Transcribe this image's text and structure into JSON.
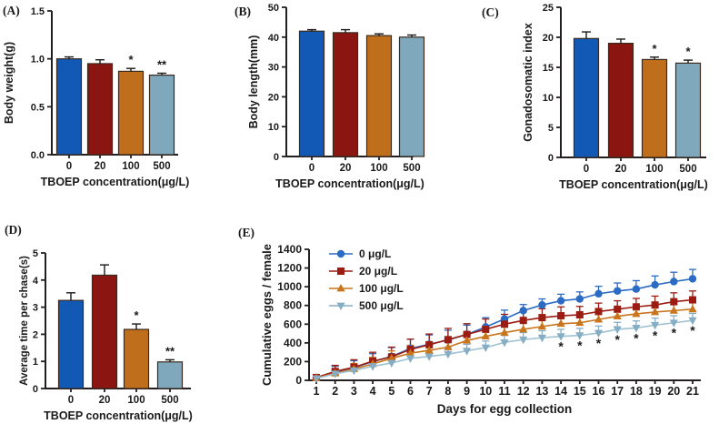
{
  "colors": {
    "bars": [
      "#1159b4",
      "#8b1510",
      "#bf6f1b",
      "#7fa8bc"
    ],
    "bar_stroke": "#3a2a20",
    "axis": "#231f20",
    "error": "#1a1a1a",
    "significance": "#1a1a1a",
    "background": "#ffffff"
  },
  "chart_data": [
    {
      "panel_label": "(A)",
      "type": "bar",
      "ylabel": "Body weight(g)",
      "xlabel": "TBOEP concentration(μg/L)",
      "categories": [
        "0",
        "20",
        "100",
        "500"
      ],
      "values": [
        1.0,
        0.95,
        0.87,
        0.83
      ],
      "errors": [
        0.02,
        0.04,
        0.03,
        0.02
      ],
      "significance": [
        "",
        "",
        "*",
        "**"
      ],
      "ylim": [
        0,
        1.5
      ],
      "ytick_step": 0.5,
      "ytick_decimals": 1
    },
    {
      "panel_label": "(B)",
      "type": "bar",
      "ylabel": "Body length(mm)",
      "xlabel": "TBOEP concentration(μg/L)",
      "categories": [
        "0",
        "20",
        "100",
        "500"
      ],
      "values": [
        42,
        41.5,
        40.5,
        40
      ],
      "errors": [
        0.5,
        1.0,
        0.6,
        0.7
      ],
      "significance": [
        "",
        "",
        "",
        ""
      ],
      "ylim": [
        0,
        50
      ],
      "ytick_step": 10,
      "ytick_decimals": 0
    },
    {
      "panel_label": "(C)",
      "type": "bar",
      "ylabel": "Gonadosomatic index",
      "xlabel": "TBOEP concentration(μg/L)",
      "categories": [
        "0",
        "20",
        "100",
        "500"
      ],
      "values": [
        19.8,
        19.0,
        16.3,
        15.7
      ],
      "errors": [
        1.1,
        0.7,
        0.4,
        0.5
      ],
      "significance": [
        "",
        "",
        "*",
        "*"
      ],
      "ylim": [
        0,
        25
      ],
      "ytick_step": 5,
      "ytick_decimals": 0
    },
    {
      "panel_label": "(D)",
      "type": "bar",
      "ylabel": "Average time per chase(s)",
      "xlabel": "TBOEP concentration(μg/L)",
      "categories": [
        "0",
        "20",
        "100",
        "500"
      ],
      "values": [
        3.25,
        4.18,
        2.18,
        0.98
      ],
      "errors": [
        0.28,
        0.38,
        0.2,
        0.08
      ],
      "significance": [
        "",
        "",
        "*",
        "**"
      ],
      "ylim": [
        0,
        5
      ],
      "ytick_step": 1,
      "ytick_decimals": 0
    },
    {
      "panel_label": "(E)",
      "type": "line",
      "ylabel": "Cumulative eggs / female",
      "xlabel": "Days for egg collection",
      "x": [
        1,
        2,
        3,
        4,
        5,
        6,
        7,
        8,
        9,
        10,
        11,
        12,
        13,
        14,
        15,
        16,
        17,
        18,
        19,
        20,
        21
      ],
      "ylim": [
        0,
        1400
      ],
      "ytick_step": 200,
      "legend_position": "top-left",
      "series": [
        {
          "name": "0 μg/L",
          "marker": "circle",
          "color": "#2b6bc4",
          "values": [
            30,
            90,
            135,
            200,
            255,
            340,
            385,
            430,
            490,
            570,
            655,
            745,
            805,
            850,
            870,
            925,
            955,
            975,
            1020,
            1055,
            1085
          ],
          "errors": [
            15,
            60,
            75,
            85,
            95,
            100,
            100,
            105,
            100,
            100,
            95,
            65,
            65,
            70,
            75,
            80,
            85,
            90,
            95,
            100,
            100
          ]
        },
        {
          "name": "20 μg/L",
          "marker": "square",
          "color": "#9b1c12",
          "values": [
            30,
            95,
            140,
            205,
            250,
            330,
            380,
            435,
            490,
            545,
            600,
            640,
            670,
            690,
            700,
            735,
            760,
            785,
            805,
            840,
            860
          ],
          "errors": [
            15,
            65,
            80,
            95,
            105,
            110,
            115,
            120,
            115,
            110,
            105,
            100,
            95,
            95,
            90,
            90,
            90,
            90,
            95,
            95,
            95
          ]
        },
        {
          "name": "100 μg/L",
          "marker": "triangle-up",
          "color": "#c8751c",
          "values": [
            25,
            75,
            120,
            175,
            235,
            290,
            320,
            355,
            425,
            470,
            510,
            545,
            575,
            605,
            615,
            650,
            685,
            710,
            730,
            745,
            760
          ],
          "errors": [
            10,
            50,
            60,
            70,
            80,
            85,
            85,
            90,
            85,
            80,
            80,
            75,
            75,
            70,
            70,
            70,
            70,
            70,
            70,
            70,
            70
          ]
        },
        {
          "name": "500 μg/L",
          "marker": "triangle-down",
          "color": "#85aec4",
          "line_color": "#9fc2d2",
          "values": [
            20,
            70,
            105,
            150,
            185,
            235,
            255,
            280,
            315,
            350,
            405,
            435,
            455,
            470,
            480,
            505,
            545,
            560,
            590,
            615,
            640
          ],
          "errors": [
            10,
            40,
            50,
            55,
            60,
            65,
            65,
            70,
            70,
            70,
            75,
            75,
            75,
            75,
            75,
            75,
            75,
            75,
            75,
            75,
            75
          ]
        }
      ],
      "significance_days": [
        14,
        15,
        16,
        17,
        18,
        19,
        20,
        21
      ],
      "significance_symbol": "*"
    }
  ]
}
